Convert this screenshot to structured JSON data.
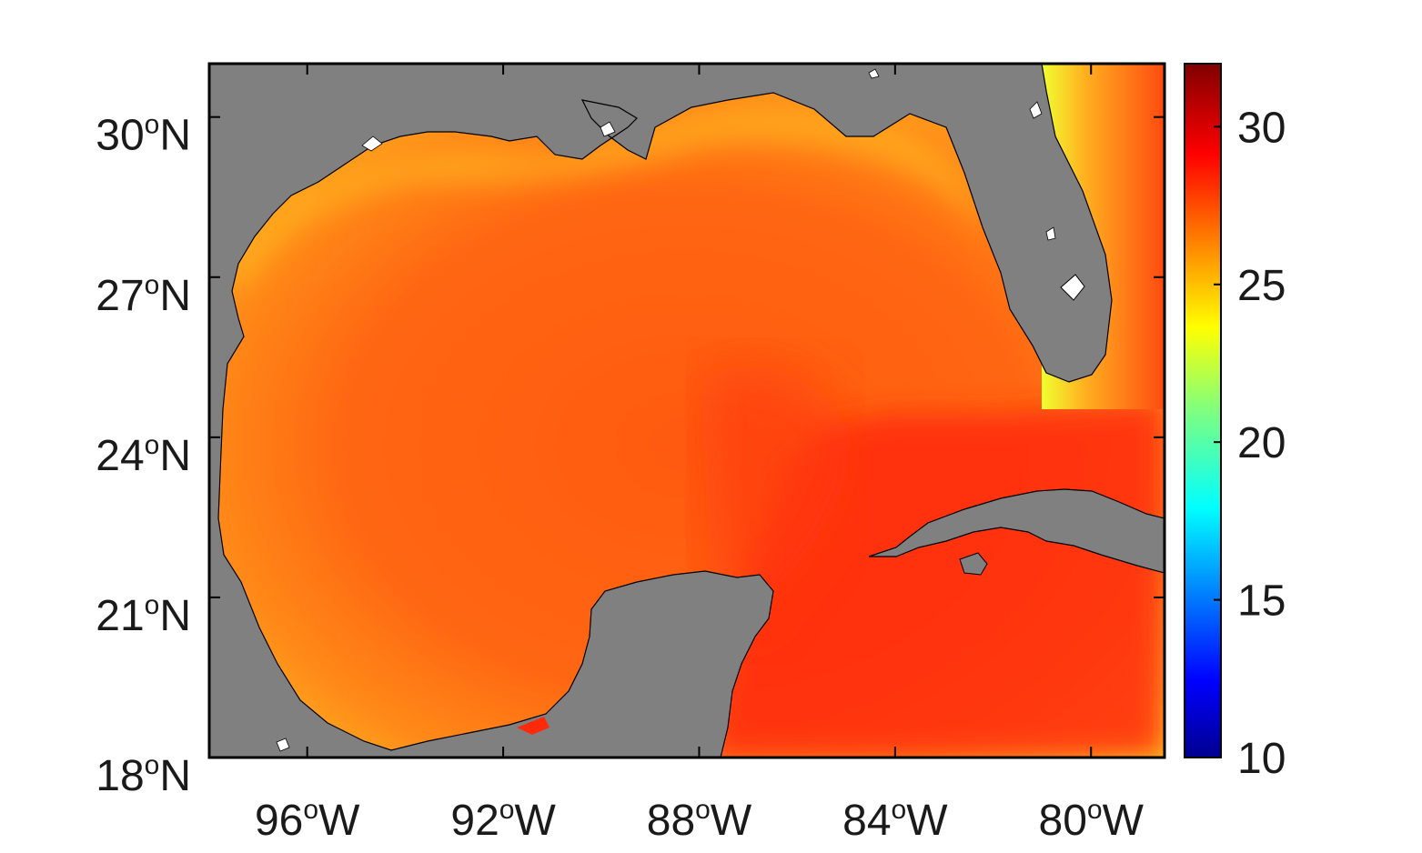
{
  "map": {
    "region": "Gulf of Mexico",
    "extent": {
      "lon_min": -98,
      "lon_max": -78.5,
      "lat_min": 18,
      "lat_max": 31
    },
    "land_color": "#808080",
    "frame_color": "#000000",
    "x_ticks": [
      {
        "value": -96,
        "num": "96",
        "deg": "o",
        "hem": "W"
      },
      {
        "value": -92,
        "num": "92",
        "deg": "o",
        "hem": "W"
      },
      {
        "value": -88,
        "num": "88",
        "deg": "o",
        "hem": "W"
      },
      {
        "value": -84,
        "num": "84",
        "deg": "o",
        "hem": "W"
      },
      {
        "value": -80,
        "num": "80",
        "deg": "o",
        "hem": "W"
      }
    ],
    "y_ticks": [
      {
        "value": 18,
        "num": "18",
        "deg": "o",
        "hem": "N"
      },
      {
        "value": 21,
        "num": "21",
        "deg": "o",
        "hem": "N"
      },
      {
        "value": 24,
        "num": "24",
        "deg": "o",
        "hem": "N"
      },
      {
        "value": 27,
        "num": "27",
        "deg": "o",
        "hem": "N"
      },
      {
        "value": 30,
        "num": "30",
        "deg": "o",
        "hem": "N"
      }
    ]
  },
  "colorbar": {
    "range": [
      10,
      32
    ],
    "colormap": "jet",
    "ticks": [
      {
        "value": 10,
        "label": "10"
      },
      {
        "value": 15,
        "label": "15"
      },
      {
        "value": 20,
        "label": "20"
      },
      {
        "value": 25,
        "label": "25"
      },
      {
        "value": 30,
        "label": "30"
      }
    ]
  },
  "field": {
    "description_values": "sea surface temperature field, approx values",
    "gulf_interior": 27.5,
    "loop_current_core": 28.5,
    "caribbean": 29.0,
    "atlantic_east_florida": 28.0,
    "northern_shelf": 25.5,
    "nw_florida_shelf": 24.5
  }
}
